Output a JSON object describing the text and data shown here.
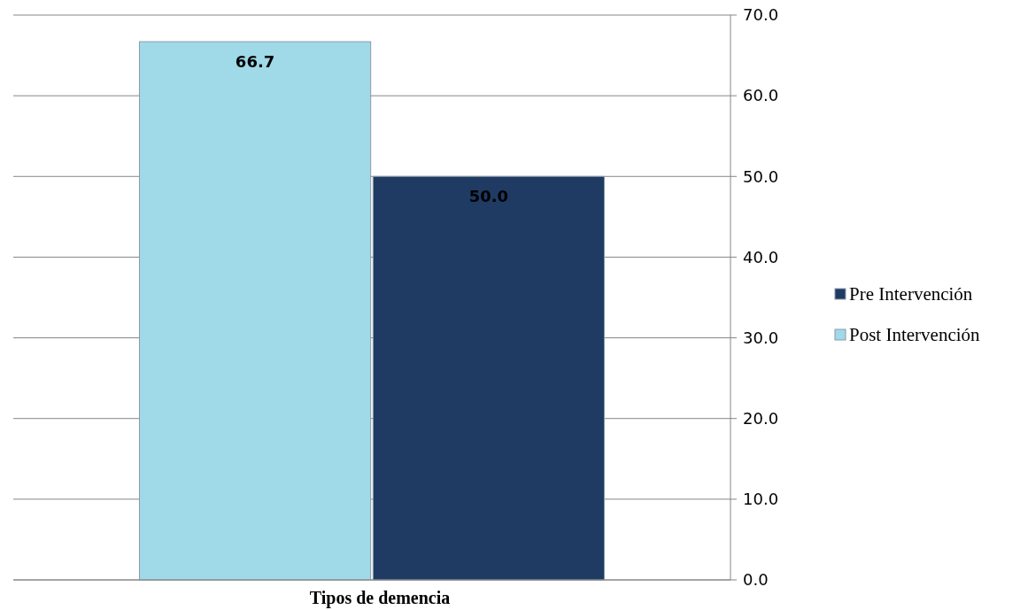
{
  "chart_data": {
    "type": "bar",
    "categories": [
      "Tipos de demencia"
    ],
    "series": [
      {
        "name": "Pre Intervención",
        "color": "#1f3b63",
        "values": [
          50.0
        ],
        "value_labels": [
          "50.0"
        ]
      },
      {
        "name": "Post Intervención",
        "color": "#a0d9e8",
        "values": [
          66.7
        ],
        "value_labels": [
          "66.7"
        ]
      }
    ],
    "ylim": [
      0,
      70
    ],
    "yticks": [
      {
        "value": 0,
        "label": "0.0"
      },
      {
        "value": 10,
        "label": "10.0"
      },
      {
        "value": 20,
        "label": "20.0"
      },
      {
        "value": 30,
        "label": "30.0"
      },
      {
        "value": 40,
        "label": "40.0"
      },
      {
        "value": 50,
        "label": "50.0"
      },
      {
        "value": 60,
        "label": "60.0"
      },
      {
        "value": 70,
        "label": "70.0"
      }
    ],
    "grid": "y",
    "legend": "right"
  }
}
